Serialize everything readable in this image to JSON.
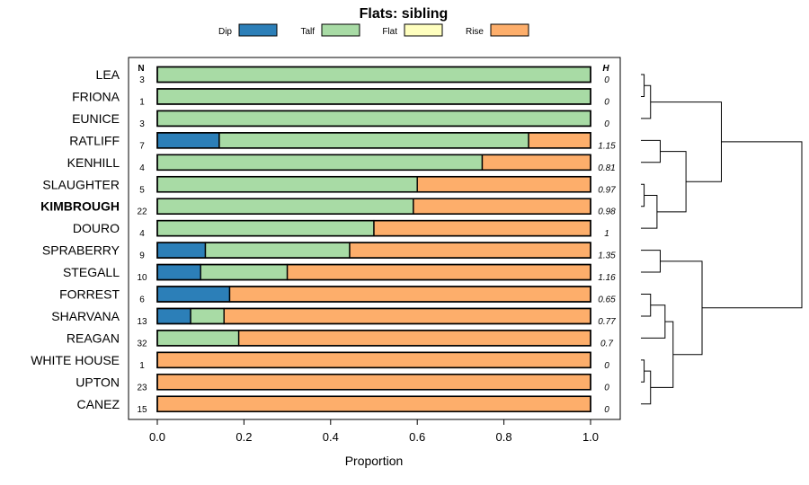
{
  "chart_data": {
    "type": "bar",
    "orientation": "horizontal",
    "stacked": true,
    "title": "Flats: sibling",
    "xlabel": "Proportion",
    "ylabel": "",
    "xlim": [
      0,
      1
    ],
    "x_ticks": [
      "0.0",
      "0.2",
      "0.4",
      "0.6",
      "0.8",
      "1.0"
    ],
    "n_header": "N",
    "h_header": "H",
    "legend_position": "top",
    "categories": [
      "LEA",
      "FRIONA",
      "EUNICE",
      "RATLIFF",
      "KENHILL",
      "SLAUGHTER",
      "KIMBROUGH",
      "DOURO",
      "SPRABERRY",
      "STEGALL",
      "FORREST",
      "SHARVANA",
      "REAGAN",
      "WHITE HOUSE",
      "UPTON",
      "CANEZ"
    ],
    "highlighted_category": "KIMBROUGH",
    "n": [
      "3",
      "1",
      "3",
      "7",
      "4",
      "5",
      "22",
      "4",
      "9",
      "10",
      "6",
      "13",
      "32",
      "1",
      "23",
      "15"
    ],
    "h": [
      "0",
      "0",
      "0",
      "1.15",
      "0.81",
      "0.97",
      "0.98",
      "1",
      "1.35",
      "1.16",
      "0.65",
      "0.77",
      "0.7",
      "0",
      "0",
      "0"
    ],
    "series": [
      {
        "name": "Dip",
        "color": "#2c7fb8",
        "values": [
          0,
          0,
          0,
          0.143,
          0,
          0,
          0,
          0,
          0.111,
          0.1,
          0.167,
          0.077,
          0,
          0,
          0,
          0
        ]
      },
      {
        "name": "Talf",
        "color": "#a8dba5",
        "values": [
          1,
          1,
          1,
          0.714,
          0.75,
          0.6,
          0.591,
          0.5,
          0.333,
          0.2,
          0,
          0.077,
          0.188,
          0,
          0,
          0
        ]
      },
      {
        "name": "Flat",
        "color": "#ffffbf",
        "values": [
          0,
          0,
          0,
          0,
          0,
          0,
          0,
          0,
          0,
          0,
          0,
          0,
          0,
          0,
          0,
          0
        ]
      },
      {
        "name": "Rise",
        "color": "#fdae6b",
        "values": [
          0,
          0,
          0,
          0.143,
          0.25,
          0.4,
          0.409,
          0.5,
          0.556,
          0.7,
          0.833,
          0.846,
          0.812,
          1,
          1,
          1
        ]
      }
    ],
    "dendrogram": {
      "leaf_order": [
        0,
        1,
        2,
        3,
        4,
        5,
        6,
        7,
        8,
        9,
        10,
        11,
        12,
        13,
        14,
        15
      ],
      "merges": [
        {
          "a": 0,
          "b": 1,
          "height": 0.02
        },
        {
          "a": "m0",
          "b": 2,
          "height": 0.06
        },
        {
          "a": 3,
          "b": 4,
          "height": 0.12
        },
        {
          "a": 5,
          "b": 6,
          "height": 0.02
        },
        {
          "a": "m3",
          "b": 7,
          "height": 0.1
        },
        {
          "a": "m2",
          "b": "m4",
          "height": 0.28
        },
        {
          "a": "m1",
          "b": "m5",
          "height": 0.5
        },
        {
          "a": 8,
          "b": 9,
          "height": 0.12
        },
        {
          "a": 10,
          "b": 11,
          "height": 0.06
        },
        {
          "a": "m8",
          "b": 12,
          "height": 0.15
        },
        {
          "a": 13,
          "b": 14,
          "height": 0.02
        },
        {
          "a": "m10",
          "b": 15,
          "height": 0.06
        },
        {
          "a": "m9",
          "b": "m11",
          "height": 0.2
        },
        {
          "a": "m7",
          "b": "m12",
          "height": 0.38
        },
        {
          "a": "m6",
          "b": "m13",
          "height": 1.0
        }
      ]
    }
  }
}
